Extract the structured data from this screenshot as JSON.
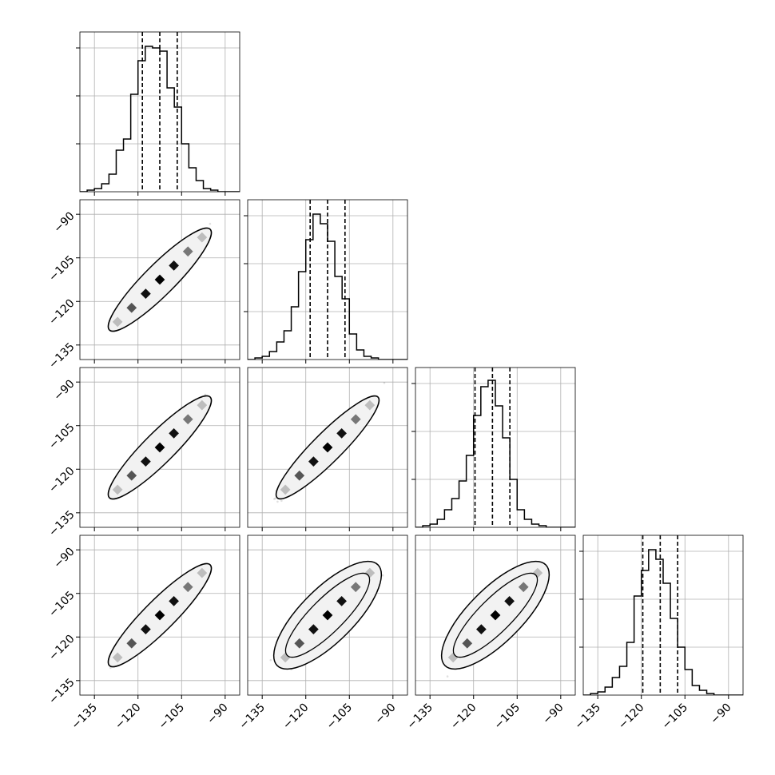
{
  "chart_data": {
    "type": "corner",
    "title": "",
    "n_params": 4,
    "axis_range": [
      -140,
      -85
    ],
    "tick_values": [
      -135,
      -120,
      -105,
      -90
    ],
    "tick_labels": [
      "−135",
      "−120",
      "−105",
      "−90"
    ],
    "grid": true,
    "diagonal_histograms": {
      "bin_start": -140,
      "bin_width": 2.5,
      "y_max": 1.0,
      "y_ticks": [
        0.3,
        0.6,
        0.9
      ],
      "counts": [
        [
          0.0,
          0.01,
          0.02,
          0.05,
          0.11,
          0.26,
          0.33,
          0.61,
          0.82,
          0.91,
          0.9,
          0.88,
          0.65,
          0.53,
          0.3,
          0.15,
          0.07,
          0.02,
          0.01,
          0.0,
          0.0,
          0.0
        ],
        [
          0.0,
          0.01,
          0.02,
          0.05,
          0.11,
          0.18,
          0.33,
          0.55,
          0.75,
          0.91,
          0.85,
          0.74,
          0.52,
          0.38,
          0.16,
          0.06,
          0.02,
          0.01,
          0.0,
          0.0,
          0.0,
          0.0
        ],
        [
          0.0,
          0.01,
          0.02,
          0.05,
          0.11,
          0.18,
          0.29,
          0.45,
          0.7,
          0.88,
          0.92,
          0.76,
          0.56,
          0.3,
          0.11,
          0.05,
          0.02,
          0.01,
          0.0,
          0.0,
          0.0,
          0.0
        ],
        [
          0.0,
          0.01,
          0.02,
          0.05,
          0.11,
          0.18,
          0.33,
          0.62,
          0.78,
          0.91,
          0.85,
          0.7,
          0.48,
          0.3,
          0.16,
          0.06,
          0.03,
          0.01,
          0.0,
          0.0,
          0.0,
          0.0
        ]
      ],
      "quantiles": [
        [
          -118.5,
          -112.5,
          -106.5
        ],
        [
          -118.5,
          -112.5,
          -106.5
        ],
        [
          -119.5,
          -113.5,
          -107.5
        ],
        [
          -119.5,
          -113.5,
          -107.5
        ]
      ]
    },
    "pair_ellipses": {
      "center": [
        -112.5,
        -112.5
      ],
      "tails": [
        [
          -138,
          -138
        ],
        [
          -87,
          -87
        ]
      ],
      "pairs": [
        {
          "row": 1,
          "col": 0,
          "outer_half_width": 2.3,
          "inner_half_width": 0
        },
        {
          "row": 2,
          "col": 0,
          "outer_half_width": 2.3,
          "inner_half_width": 0
        },
        {
          "row": 2,
          "col": 1,
          "outer_half_width": 2.2,
          "inner_half_width": 0
        },
        {
          "row": 3,
          "col": 0,
          "outer_half_width": 2.3,
          "inner_half_width": 0
        },
        {
          "row": 3,
          "col": 1,
          "outer_half_width": 4.0,
          "inner_half_width": 2.5
        },
        {
          "row": 3,
          "col": 2,
          "outer_half_width": 4.0,
          "inner_half_width": 2.5
        }
      ]
    }
  }
}
